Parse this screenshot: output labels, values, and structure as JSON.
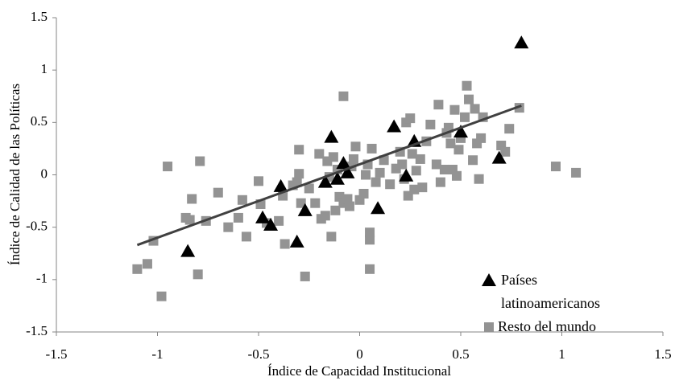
{
  "chart_data": {
    "type": "scatter",
    "xlabel": "Índice de Capacidad Institucional",
    "ylabel": "Índice de Calidad de las Políticas",
    "xlim": [
      -1.5,
      1.5
    ],
    "ylim": [
      -1.5,
      1.5
    ],
    "xticks": [
      -1.5,
      -1,
      -0.5,
      0,
      0.5,
      1,
      1.5
    ],
    "yticks": [
      -1.5,
      -1,
      -0.5,
      0,
      0.5,
      1,
      1.5
    ],
    "grid": false,
    "legend": "lower right",
    "series": [
      {
        "name": "Países latinoamericanos",
        "color": "#000000",
        "marker": "triangle",
        "x": [
          0.8,
          -0.85,
          -0.39,
          -0.48,
          -0.44,
          -0.31,
          -0.27,
          -0.14,
          -0.17,
          -0.11,
          -0.08,
          -0.06,
          0.09,
          0.17,
          0.27,
          0.23,
          0.5,
          0.69
        ],
        "y": [
          1.26,
          -0.73,
          -0.11,
          -0.41,
          -0.48,
          -0.64,
          -0.34,
          0.36,
          -0.07,
          -0.04,
          0.11,
          0.02,
          -0.32,
          0.46,
          0.32,
          -0.01,
          0.41,
          0.16
        ]
      },
      {
        "name": "Resto del mundo",
        "color": "#939393",
        "marker": "square",
        "x": [
          -1.1,
          -1.05,
          -1.02,
          -0.98,
          -0.95,
          -0.86,
          -0.84,
          -0.83,
          -0.8,
          -0.79,
          -0.76,
          -0.7,
          -0.65,
          -0.6,
          -0.58,
          -0.56,
          -0.5,
          -0.49,
          -0.46,
          -0.4,
          -0.38,
          -0.37,
          -0.33,
          -0.31,
          -0.3,
          -0.3,
          -0.29,
          -0.27,
          -0.25,
          -0.22,
          -0.2,
          -0.19,
          -0.17,
          -0.16,
          -0.15,
          -0.14,
          -0.13,
          -0.12,
          -0.11,
          -0.1,
          -0.08,
          -0.08,
          -0.06,
          -0.05,
          -0.04,
          -0.03,
          -0.02,
          0,
          0.02,
          0.03,
          0.04,
          0.05,
          0.05,
          0.05,
          0.06,
          0.08,
          0.1,
          0.12,
          0.15,
          0.18,
          0.2,
          0.21,
          0.22,
          0.23,
          0.24,
          0.25,
          0.26,
          0.27,
          0.28,
          0.3,
          0.31,
          0.33,
          0.35,
          0.38,
          0.39,
          0.4,
          0.42,
          0.43,
          0.44,
          0.45,
          0.46,
          0.47,
          0.48,
          0.49,
          0.5,
          0.52,
          0.53,
          0.54,
          0.56,
          0.57,
          0.58,
          0.59,
          0.6,
          0.61,
          0.7,
          0.72,
          0.74,
          0.79,
          0.97,
          1.07
        ],
        "y": [
          -0.9,
          -0.85,
          -0.63,
          -1.16,
          0.08,
          -0.41,
          -0.43,
          -0.23,
          -0.95,
          0.13,
          -0.44,
          -0.17,
          -0.5,
          -0.41,
          -0.24,
          -0.59,
          -0.06,
          -0.28,
          -0.46,
          -0.44,
          -0.2,
          -0.66,
          -0.1,
          -0.07,
          0.01,
          0.24,
          -0.27,
          -0.97,
          -0.13,
          -0.27,
          0.2,
          -0.42,
          -0.39,
          0.13,
          -0.02,
          -0.59,
          0.17,
          -0.34,
          0.05,
          -0.21,
          -0.27,
          0.75,
          -0.23,
          -0.3,
          0.08,
          0.15,
          0.27,
          -0.24,
          -0.18,
          0.0,
          0.1,
          -0.55,
          -0.62,
          -0.9,
          0.25,
          -0.07,
          0.02,
          0.14,
          -0.09,
          0.06,
          0.22,
          0.1,
          -0.04,
          0.5,
          -0.2,
          0.54,
          0.2,
          -0.14,
          0.04,
          0.15,
          -0.12,
          0.32,
          0.48,
          0.1,
          0.67,
          -0.07,
          0.05,
          0.4,
          0.45,
          0.3,
          0.05,
          0.62,
          -0.01,
          0.24,
          0.35,
          0.55,
          0.85,
          0.72,
          0.14,
          0.63,
          0.3,
          -0.04,
          0.35,
          0.55,
          0.28,
          0.22,
          0.44,
          0.64,
          0.08,
          0.02
        ]
      }
    ],
    "trendline": {
      "color": "#404040",
      "x": [
        -1.1,
        0.8
      ],
      "y": [
        -0.67,
        0.66
      ]
    }
  }
}
